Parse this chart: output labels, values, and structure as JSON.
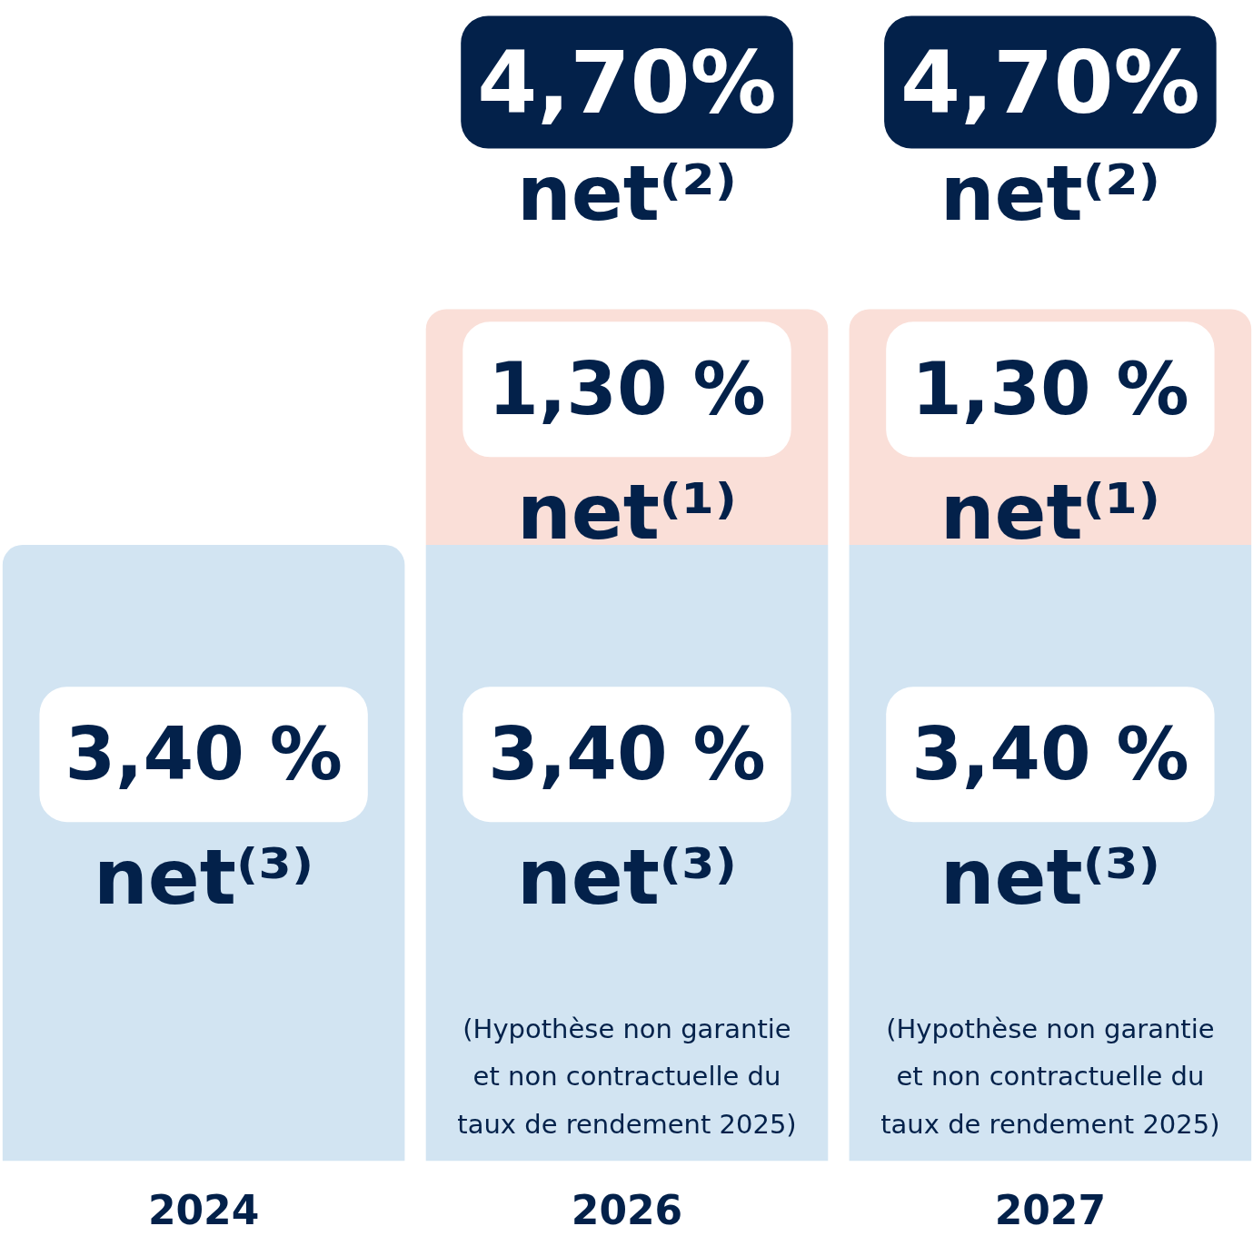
{
  "chart_data": {
    "type": "bar",
    "categories": [
      "2024",
      "2026",
      "2027"
    ],
    "stacked": true,
    "tick_labels": "x",
    "series": [
      {
        "color": "#d2e4f2",
        "values": [
          3.4,
          3.4,
          3.4
        ],
        "value_labels": [
          "3,40 %\nnet⁽³⁾",
          "3,40 %\nnet⁽³⁾",
          "3,40 %\nnet⁽³⁾"
        ]
      },
      {
        "color": "#fadfd8",
        "values": [
          null,
          1.3,
          1.3
        ],
        "value_labels": [
          null,
          "1,30 %\nnet⁽¹⁾",
          "1,30 %\nnet⁽¹⁾"
        ]
      }
    ],
    "totals": [
      null,
      "4,70%\nnet⁽²⁾",
      "4,70%\nnet⁽²⁾"
    ],
    "annotations": [
      "(Hypothèse non garantie et non contractuelle du taux de rendement 2025)",
      "(Hypothèse non garantie et non contractuelle du taux de rendement 2025)"
    ]
  }
}
